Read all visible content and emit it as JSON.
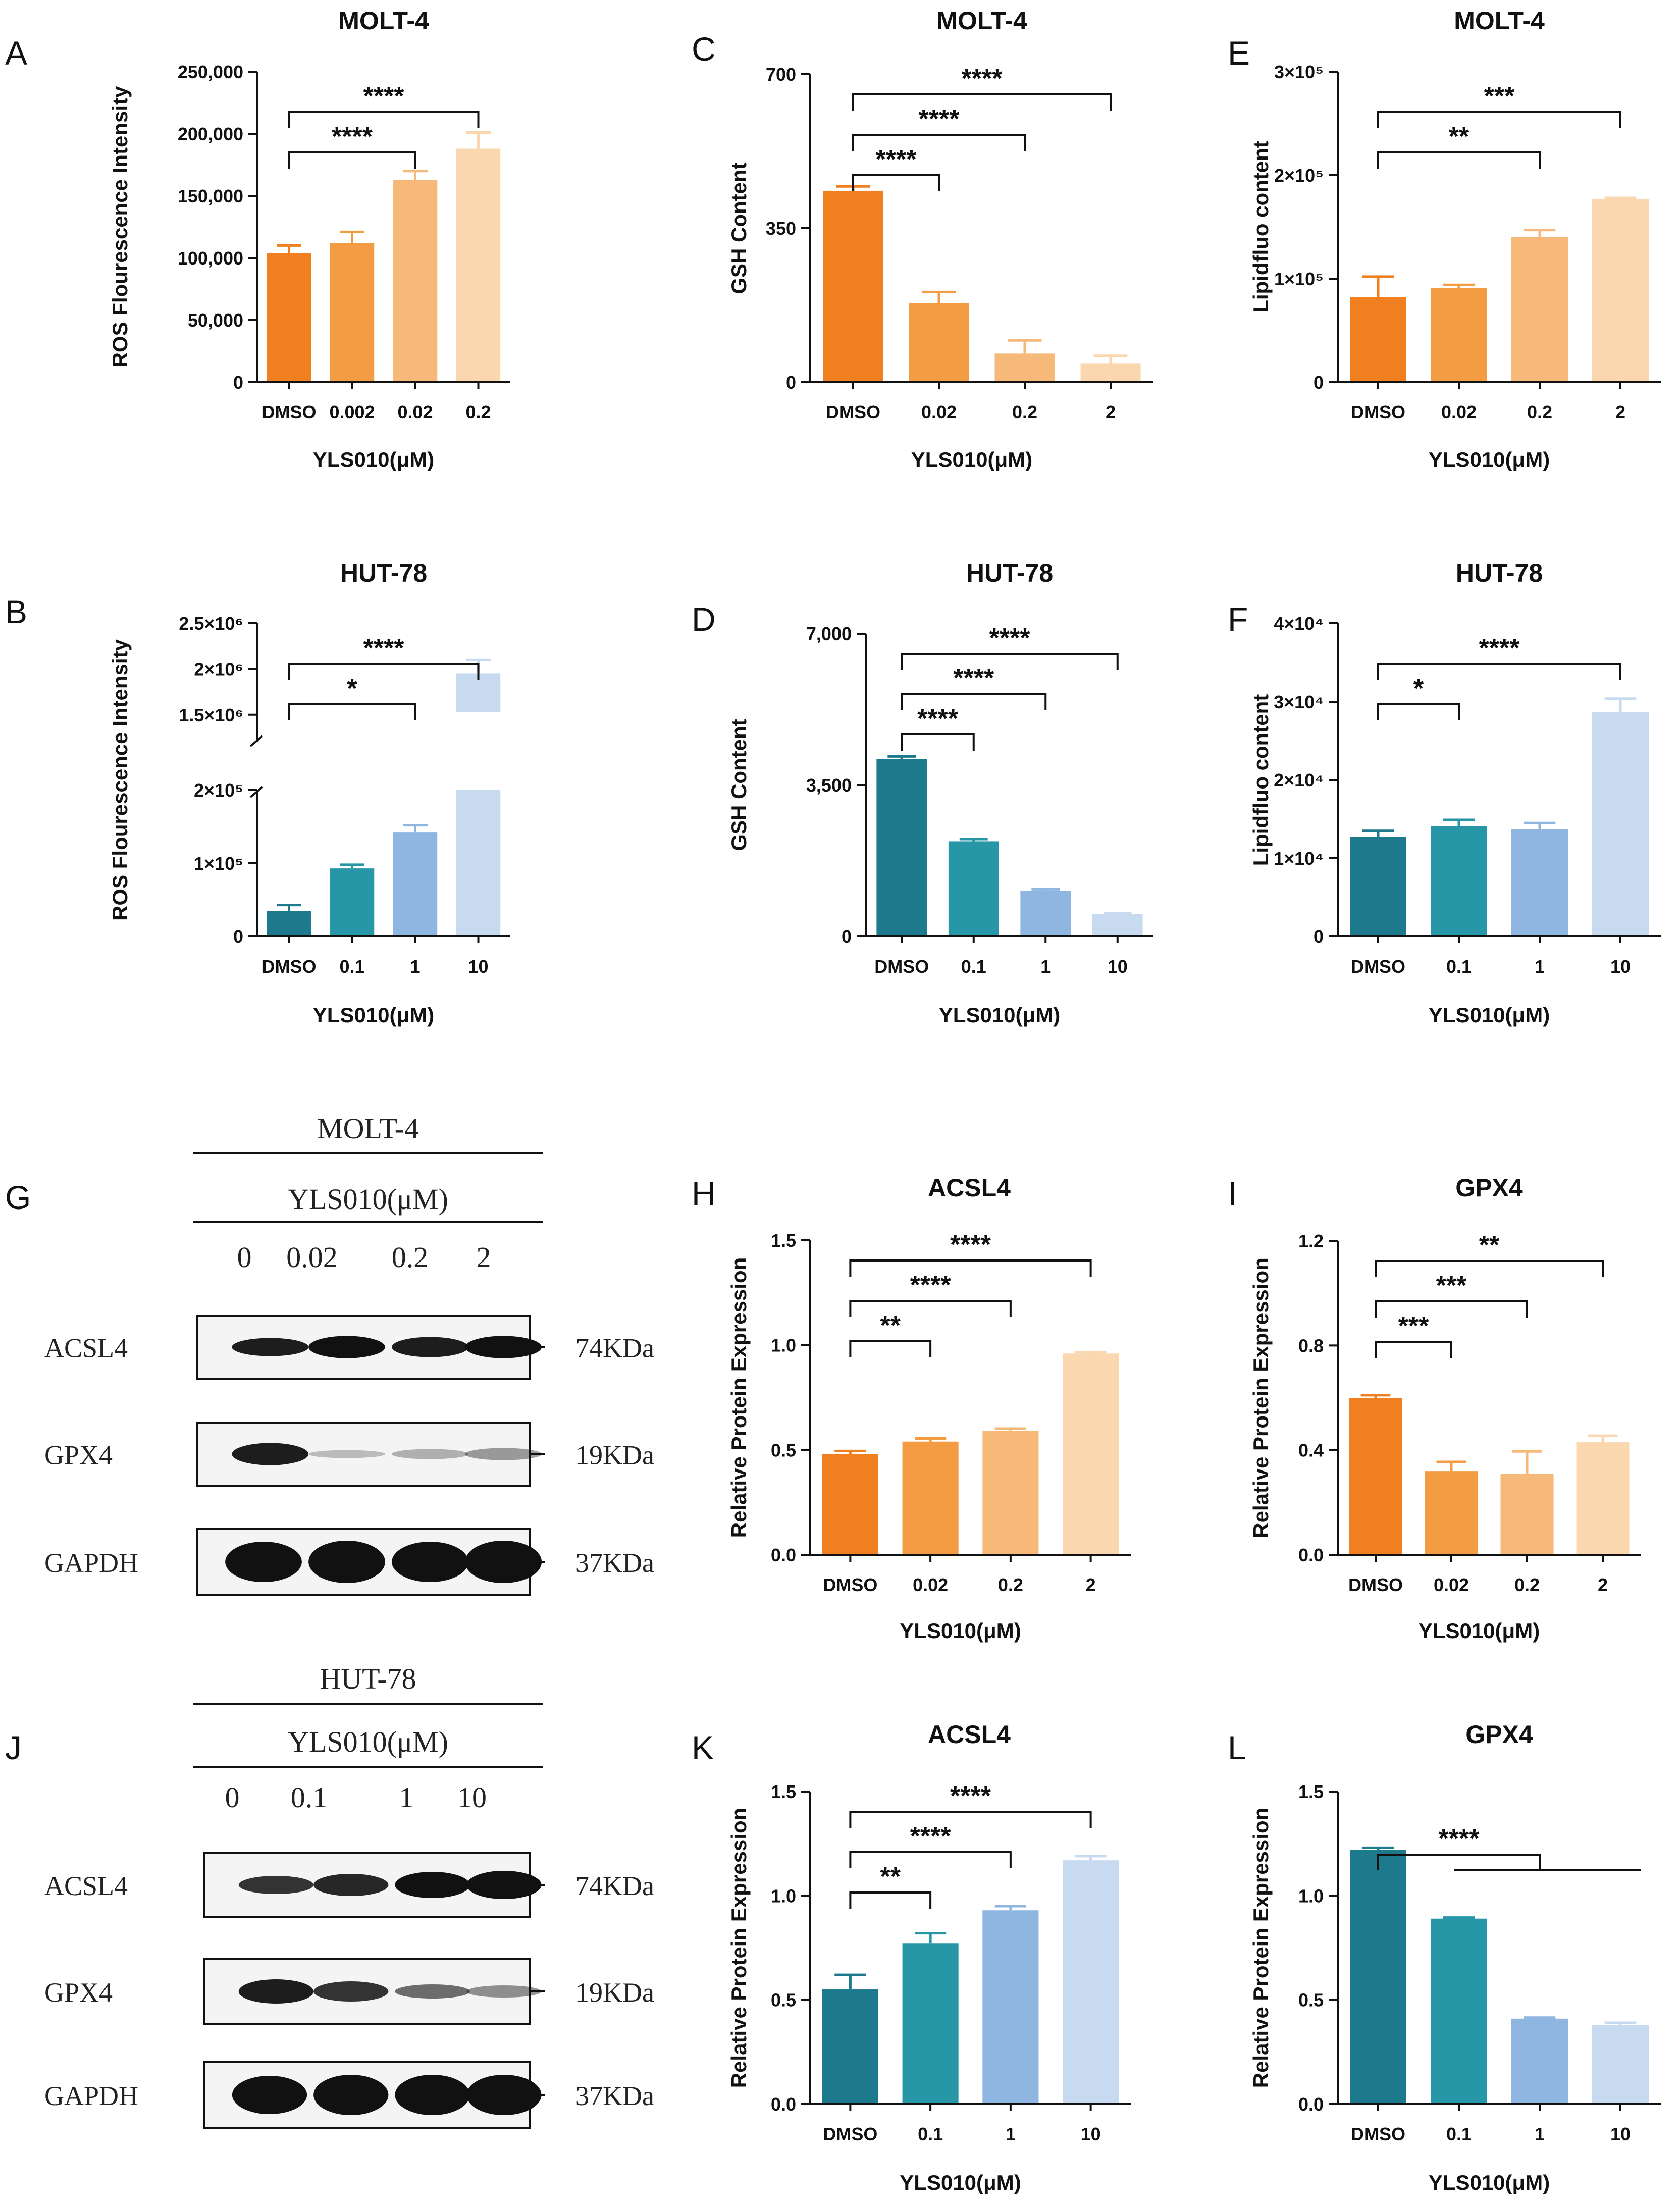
{
  "chart_data": [
    {
      "id": "A",
      "panel_letter": "A",
      "type": "bar",
      "title": "MOLT-4",
      "ylabel": "ROS Flourescence Intensity",
      "xlabel": "YLS010(μM)",
      "categories": [
        "DMSO",
        "0.002",
        "0.02",
        "0.2"
      ],
      "values": [
        104000,
        112000,
        163000,
        188000
      ],
      "errors": [
        6000,
        9000,
        7000,
        13000
      ],
      "colors": [
        "#ef7f1f",
        "#f39c43",
        "#f6b97a",
        "#fad7ae"
      ],
      "ylim": [
        0,
        250000
      ],
      "yticks": [
        0,
        50000,
        100000,
        150000,
        200000,
        250000
      ],
      "ytick_labels": [
        "0",
        "50,000",
        "100,000",
        "150,000",
        "200,000",
        "250,000"
      ],
      "comparisons": [
        {
          "from": 0,
          "to": 2,
          "label": "****"
        },
        {
          "from": 0,
          "to": 3,
          "label": "****"
        }
      ]
    },
    {
      "id": "C",
      "panel_letter": "C",
      "type": "bar",
      "title": "MOLT-4",
      "ylabel": "GSH Content",
      "xlabel": "YLS010(μM)",
      "categories": [
        "DMSO",
        "0.02",
        "0.2",
        "2"
      ],
      "values": [
        435,
        180,
        65,
        42
      ],
      "errors": [
        10,
        25,
        30,
        18
      ],
      "colors": [
        "#ef7f1f",
        "#f39c43",
        "#f6b97a",
        "#fad7ae"
      ],
      "ylim": [
        0,
        700
      ],
      "yticks": [
        0,
        350,
        700
      ],
      "ytick_labels": [
        "0",
        "350",
        "700"
      ],
      "comparisons": [
        {
          "from": 0,
          "to": 1,
          "label": "****"
        },
        {
          "from": 0,
          "to": 2,
          "label": "****"
        },
        {
          "from": 0,
          "to": 3,
          "label": "****"
        }
      ]
    },
    {
      "id": "E",
      "panel_letter": "E",
      "type": "bar",
      "title": "MOLT-4",
      "ylabel": "Lipidfluo content",
      "xlabel": "YLS010(μM)",
      "categories": [
        "DMSO",
        "0.02",
        "0.2",
        "2"
      ],
      "values": [
        82000,
        91000,
        140000,
        177000
      ],
      "errors": [
        20000,
        3000,
        7000,
        1000
      ],
      "colors": [
        "#ef7f1f",
        "#f39c43",
        "#f6b97a",
        "#fad7ae"
      ],
      "ylim": [
        0,
        300000
      ],
      "yticks": [
        0,
        100000,
        200000,
        300000
      ],
      "ytick_labels": [
        "0",
        "1×10⁵",
        "2×10⁵",
        "3×10⁵"
      ],
      "comparisons": [
        {
          "from": 0,
          "to": 2,
          "label": "**"
        },
        {
          "from": 0,
          "to": 3,
          "label": "***"
        }
      ]
    },
    {
      "id": "B",
      "panel_letter": "B",
      "type": "bar",
      "title": "HUT-78",
      "ylabel": "ROS Flourescence Intensity",
      "xlabel": "YLS010(μM)",
      "categories": [
        "DMSO",
        "0.1",
        "1",
        "10"
      ],
      "values": [
        35000,
        93000,
        142000,
        1950000
      ],
      "errors": [
        8000,
        5000,
        10000,
        150000
      ],
      "colors": [
        "#1d7a8c",
        "#2796a7",
        "#8fb6e0",
        "#c7daf0"
      ],
      "ylim": [
        0,
        2500000
      ],
      "broken_axis": [
        200000,
        1200000
      ],
      "yticks": [
        0,
        100000,
        200000,
        1500000,
        2000000,
        2500000
      ],
      "ytick_labels": [
        "0",
        "1×10⁵",
        "2×10⁵",
        "1.5×10⁶",
        "2×10⁶",
        "2.5×10⁶"
      ],
      "comparisons": [
        {
          "from": 0,
          "to": 2,
          "label": "*"
        },
        {
          "from": 0,
          "to": 3,
          "label": "****"
        }
      ]
    },
    {
      "id": "D",
      "panel_letter": "D",
      "type": "bar",
      "title": "HUT-78",
      "ylabel": "GSH Content",
      "xlabel": "YLS010(μM)",
      "categories": [
        "DMSO",
        "0.1",
        "1",
        "10"
      ],
      "values": [
        4100,
        2200,
        1050,
        520
      ],
      "errors": [
        60,
        40,
        30,
        20
      ],
      "colors": [
        "#1d7a8c",
        "#2796a7",
        "#8fb6e0",
        "#c7daf0"
      ],
      "ylim": [
        0,
        7000
      ],
      "yticks": [
        0,
        3500,
        7000
      ],
      "ytick_labels": [
        "0",
        "3,500",
        "7,000"
      ],
      "comparisons": [
        {
          "from": 0,
          "to": 1,
          "label": "****"
        },
        {
          "from": 0,
          "to": 2,
          "label": "****"
        },
        {
          "from": 0,
          "to": 3,
          "label": "****"
        }
      ]
    },
    {
      "id": "F",
      "panel_letter": "F",
      "type": "bar",
      "title": "HUT-78",
      "ylabel": "Lipidfluo content",
      "xlabel": "YLS010(μM)",
      "categories": [
        "DMSO",
        "0.1",
        "1",
        "10"
      ],
      "values": [
        12700,
        14100,
        13700,
        28700
      ],
      "errors": [
        800,
        800,
        800,
        1700
      ],
      "colors": [
        "#1d7a8c",
        "#2796a7",
        "#8fb6e0",
        "#c7daf0"
      ],
      "ylim": [
        0,
        40000
      ],
      "yticks": [
        0,
        10000,
        20000,
        30000,
        40000
      ],
      "ytick_labels": [
        "0",
        "1×10⁴",
        "2×10⁴",
        "3×10⁴",
        "4×10⁴"
      ],
      "comparisons": [
        {
          "from": 0,
          "to": 1,
          "label": "*"
        },
        {
          "from": 0,
          "to": 3,
          "label": "****"
        }
      ]
    },
    {
      "id": "H",
      "panel_letter": "H",
      "type": "bar",
      "title": "ACSL4",
      "ylabel": "Relative Protein Expression",
      "xlabel": "YLS010(μM)",
      "categories": [
        "DMSO",
        "0.02",
        "0.2",
        "2"
      ],
      "values": [
        0.48,
        0.54,
        0.59,
        0.96
      ],
      "errors": [
        0.015,
        0.015,
        0.012,
        0.006
      ],
      "colors": [
        "#ef7f1f",
        "#f39c43",
        "#f6b97a",
        "#fad7ae"
      ],
      "ylim": [
        0,
        1.5
      ],
      "yticks": [
        0,
        0.5,
        1.0,
        1.5
      ],
      "ytick_labels": [
        "0.0",
        "0.5",
        "1.0",
        "1.5"
      ],
      "comparisons": [
        {
          "from": 0,
          "to": 1,
          "label": "**"
        },
        {
          "from": 0,
          "to": 2,
          "label": "****"
        },
        {
          "from": 0,
          "to": 3,
          "label": "****"
        }
      ]
    },
    {
      "id": "I",
      "panel_letter": "I",
      "type": "bar",
      "title": "GPX4",
      "ylabel": "Relative Protein Expression",
      "xlabel": "YLS010(μM)",
      "categories": [
        "DMSO",
        "0.02",
        "0.2",
        "2"
      ],
      "values": [
        0.6,
        0.32,
        0.31,
        0.43
      ],
      "errors": [
        0.01,
        0.035,
        0.085,
        0.025
      ],
      "colors": [
        "#ef7f1f",
        "#f39c43",
        "#f6b97a",
        "#fad7ae"
      ],
      "ylim": [
        0,
        1.2
      ],
      "yticks": [
        0,
        0.4,
        0.8,
        1.2
      ],
      "ytick_labels": [
        "0.0",
        "0.4",
        "0.8",
        "1.2"
      ],
      "comparisons": [
        {
          "from": 0,
          "to": 1,
          "label": "***"
        },
        {
          "from": 0,
          "to": 2,
          "label": "***"
        },
        {
          "from": 0,
          "to": 3,
          "label": "**"
        }
      ]
    },
    {
      "id": "K",
      "panel_letter": "K",
      "type": "bar",
      "title": "ACSL4",
      "ylabel": "Relative Protein Expression",
      "xlabel": "YLS010(μM)",
      "categories": [
        "DMSO",
        "0.1",
        "1",
        "10"
      ],
      "values": [
        0.55,
        0.77,
        0.93,
        1.17
      ],
      "errors": [
        0.07,
        0.05,
        0.02,
        0.02
      ],
      "colors": [
        "#1d7a8c",
        "#2796a7",
        "#8fb6e0",
        "#c7daf0"
      ],
      "ylim": [
        0,
        1.5
      ],
      "yticks": [
        0,
        0.5,
        1.0,
        1.5
      ],
      "ytick_labels": [
        "0.0",
        "0.5",
        "1.0",
        "1.5"
      ],
      "comparisons": [
        {
          "from": 0,
          "to": 1,
          "label": "**"
        },
        {
          "from": 0,
          "to": 2,
          "label": "****"
        },
        {
          "from": 0,
          "to": 3,
          "label": "****"
        }
      ]
    },
    {
      "id": "L",
      "panel_letter": "L",
      "type": "bar",
      "title": "GPX4",
      "ylabel": "Relative Protein Expression",
      "xlabel": "YLS010(μM)",
      "categories": [
        "DMSO",
        "0.1",
        "1",
        "10"
      ],
      "values": [
        1.22,
        0.89,
        0.41,
        0.38
      ],
      "errors": [
        0.01,
        0.005,
        0.005,
        0.01
      ],
      "colors": [
        "#1d7a8c",
        "#2796a7",
        "#8fb6e0",
        "#c7daf0"
      ],
      "ylim": [
        0,
        1.5
      ],
      "yticks": [
        0,
        0.5,
        1.0,
        1.5
      ],
      "ytick_labels": [
        "0.0",
        "0.5",
        "1.0",
        "1.5"
      ],
      "comparisons": [
        {
          "from": 0,
          "to": 2,
          "label": "****",
          "group_to": 3
        }
      ]
    }
  ],
  "blots": [
    {
      "id": "G",
      "panel_letter": "G",
      "cell_line": "MOLT-4",
      "treatment": "YLS010(μM)",
      "doses": [
        "0",
        "0.02",
        "0.2",
        "2"
      ],
      "rows": [
        {
          "protein": "ACSL4",
          "size": "74KDa"
        },
        {
          "protein": "GPX4",
          "size": "19KDa"
        },
        {
          "protein": "GAPDH",
          "size": "37KDa"
        }
      ]
    },
    {
      "id": "J",
      "panel_letter": "J",
      "cell_line": "HUT-78",
      "treatment": "YLS010(μM)",
      "doses": [
        "0",
        "0.1",
        "1",
        "10"
      ],
      "rows": [
        {
          "protein": "ACSL4",
          "size": "74KDa"
        },
        {
          "protein": "GPX4",
          "size": "19KDa"
        },
        {
          "protein": "GAPDH",
          "size": "37KDa"
        }
      ]
    }
  ]
}
